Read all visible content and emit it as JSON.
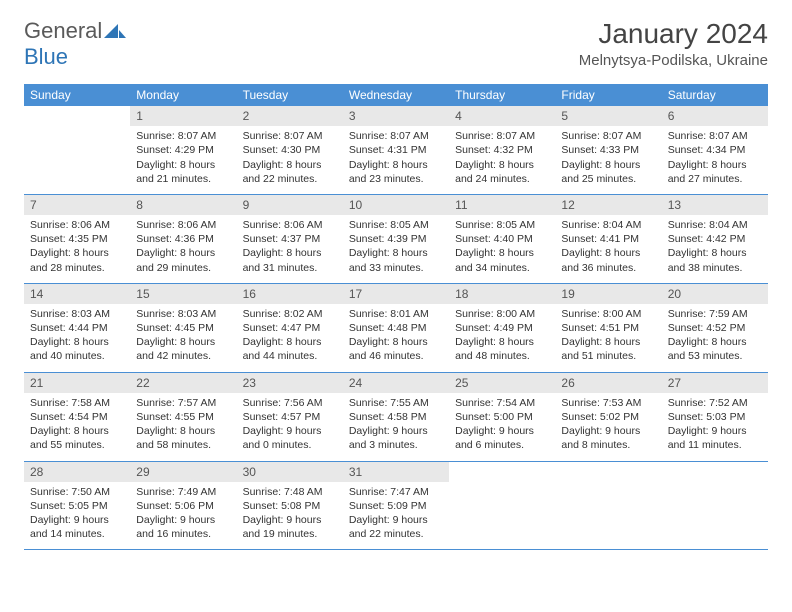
{
  "logo": {
    "part1": "General",
    "part2": "Blue"
  },
  "title": "January 2024",
  "location": "Melnytsya-Podilska, Ukraine",
  "colors": {
    "header_bg": "#4a8fd4",
    "header_text": "#ffffff",
    "daynum_bg": "#e8e8e8",
    "row_border": "#4a8fd4",
    "logo_gray": "#5a5a5a",
    "logo_blue": "#2e75b6"
  },
  "weekdays": [
    "Sunday",
    "Monday",
    "Tuesday",
    "Wednesday",
    "Thursday",
    "Friday",
    "Saturday"
  ],
  "weeks": [
    [
      null,
      {
        "n": "1",
        "sr": "Sunrise: 8:07 AM",
        "ss": "Sunset: 4:29 PM",
        "d1": "Daylight: 8 hours",
        "d2": "and 21 minutes."
      },
      {
        "n": "2",
        "sr": "Sunrise: 8:07 AM",
        "ss": "Sunset: 4:30 PM",
        "d1": "Daylight: 8 hours",
        "d2": "and 22 minutes."
      },
      {
        "n": "3",
        "sr": "Sunrise: 8:07 AM",
        "ss": "Sunset: 4:31 PM",
        "d1": "Daylight: 8 hours",
        "d2": "and 23 minutes."
      },
      {
        "n": "4",
        "sr": "Sunrise: 8:07 AM",
        "ss": "Sunset: 4:32 PM",
        "d1": "Daylight: 8 hours",
        "d2": "and 24 minutes."
      },
      {
        "n": "5",
        "sr": "Sunrise: 8:07 AM",
        "ss": "Sunset: 4:33 PM",
        "d1": "Daylight: 8 hours",
        "d2": "and 25 minutes."
      },
      {
        "n": "6",
        "sr": "Sunrise: 8:07 AM",
        "ss": "Sunset: 4:34 PM",
        "d1": "Daylight: 8 hours",
        "d2": "and 27 minutes."
      }
    ],
    [
      {
        "n": "7",
        "sr": "Sunrise: 8:06 AM",
        "ss": "Sunset: 4:35 PM",
        "d1": "Daylight: 8 hours",
        "d2": "and 28 minutes."
      },
      {
        "n": "8",
        "sr": "Sunrise: 8:06 AM",
        "ss": "Sunset: 4:36 PM",
        "d1": "Daylight: 8 hours",
        "d2": "and 29 minutes."
      },
      {
        "n": "9",
        "sr": "Sunrise: 8:06 AM",
        "ss": "Sunset: 4:37 PM",
        "d1": "Daylight: 8 hours",
        "d2": "and 31 minutes."
      },
      {
        "n": "10",
        "sr": "Sunrise: 8:05 AM",
        "ss": "Sunset: 4:39 PM",
        "d1": "Daylight: 8 hours",
        "d2": "and 33 minutes."
      },
      {
        "n": "11",
        "sr": "Sunrise: 8:05 AM",
        "ss": "Sunset: 4:40 PM",
        "d1": "Daylight: 8 hours",
        "d2": "and 34 minutes."
      },
      {
        "n": "12",
        "sr": "Sunrise: 8:04 AM",
        "ss": "Sunset: 4:41 PM",
        "d1": "Daylight: 8 hours",
        "d2": "and 36 minutes."
      },
      {
        "n": "13",
        "sr": "Sunrise: 8:04 AM",
        "ss": "Sunset: 4:42 PM",
        "d1": "Daylight: 8 hours",
        "d2": "and 38 minutes."
      }
    ],
    [
      {
        "n": "14",
        "sr": "Sunrise: 8:03 AM",
        "ss": "Sunset: 4:44 PM",
        "d1": "Daylight: 8 hours",
        "d2": "and 40 minutes."
      },
      {
        "n": "15",
        "sr": "Sunrise: 8:03 AM",
        "ss": "Sunset: 4:45 PM",
        "d1": "Daylight: 8 hours",
        "d2": "and 42 minutes."
      },
      {
        "n": "16",
        "sr": "Sunrise: 8:02 AM",
        "ss": "Sunset: 4:47 PM",
        "d1": "Daylight: 8 hours",
        "d2": "and 44 minutes."
      },
      {
        "n": "17",
        "sr": "Sunrise: 8:01 AM",
        "ss": "Sunset: 4:48 PM",
        "d1": "Daylight: 8 hours",
        "d2": "and 46 minutes."
      },
      {
        "n": "18",
        "sr": "Sunrise: 8:00 AM",
        "ss": "Sunset: 4:49 PM",
        "d1": "Daylight: 8 hours",
        "d2": "and 48 minutes."
      },
      {
        "n": "19",
        "sr": "Sunrise: 8:00 AM",
        "ss": "Sunset: 4:51 PM",
        "d1": "Daylight: 8 hours",
        "d2": "and 51 minutes."
      },
      {
        "n": "20",
        "sr": "Sunrise: 7:59 AM",
        "ss": "Sunset: 4:52 PM",
        "d1": "Daylight: 8 hours",
        "d2": "and 53 minutes."
      }
    ],
    [
      {
        "n": "21",
        "sr": "Sunrise: 7:58 AM",
        "ss": "Sunset: 4:54 PM",
        "d1": "Daylight: 8 hours",
        "d2": "and 55 minutes."
      },
      {
        "n": "22",
        "sr": "Sunrise: 7:57 AM",
        "ss": "Sunset: 4:55 PM",
        "d1": "Daylight: 8 hours",
        "d2": "and 58 minutes."
      },
      {
        "n": "23",
        "sr": "Sunrise: 7:56 AM",
        "ss": "Sunset: 4:57 PM",
        "d1": "Daylight: 9 hours",
        "d2": "and 0 minutes."
      },
      {
        "n": "24",
        "sr": "Sunrise: 7:55 AM",
        "ss": "Sunset: 4:58 PM",
        "d1": "Daylight: 9 hours",
        "d2": "and 3 minutes."
      },
      {
        "n": "25",
        "sr": "Sunrise: 7:54 AM",
        "ss": "Sunset: 5:00 PM",
        "d1": "Daylight: 9 hours",
        "d2": "and 6 minutes."
      },
      {
        "n": "26",
        "sr": "Sunrise: 7:53 AM",
        "ss": "Sunset: 5:02 PM",
        "d1": "Daylight: 9 hours",
        "d2": "and 8 minutes."
      },
      {
        "n": "27",
        "sr": "Sunrise: 7:52 AM",
        "ss": "Sunset: 5:03 PM",
        "d1": "Daylight: 9 hours",
        "d2": "and 11 minutes."
      }
    ],
    [
      {
        "n": "28",
        "sr": "Sunrise: 7:50 AM",
        "ss": "Sunset: 5:05 PM",
        "d1": "Daylight: 9 hours",
        "d2": "and 14 minutes."
      },
      {
        "n": "29",
        "sr": "Sunrise: 7:49 AM",
        "ss": "Sunset: 5:06 PM",
        "d1": "Daylight: 9 hours",
        "d2": "and 16 minutes."
      },
      {
        "n": "30",
        "sr": "Sunrise: 7:48 AM",
        "ss": "Sunset: 5:08 PM",
        "d1": "Daylight: 9 hours",
        "d2": "and 19 minutes."
      },
      {
        "n": "31",
        "sr": "Sunrise: 7:47 AM",
        "ss": "Sunset: 5:09 PM",
        "d1": "Daylight: 9 hours",
        "d2": "and 22 minutes."
      },
      null,
      null,
      null
    ]
  ]
}
